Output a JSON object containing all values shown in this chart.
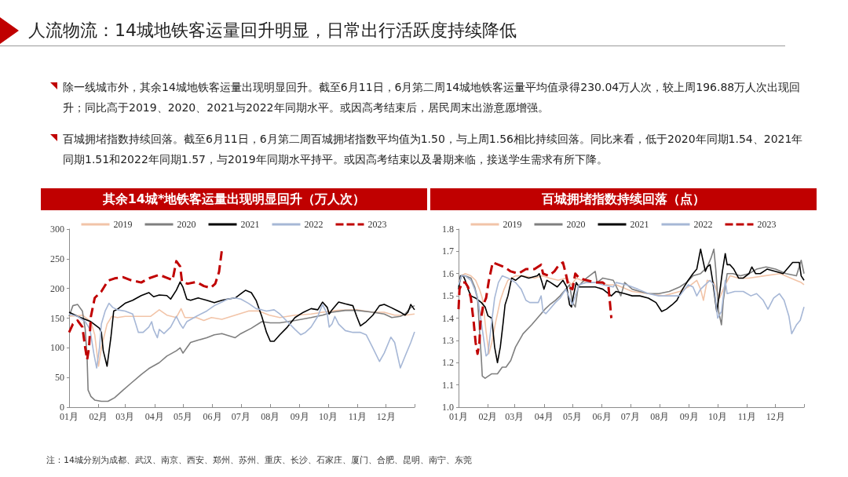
{
  "chart_data": [
    {
      "type": "other",
      "title": "人流物流：14城地铁客运量回升明显，日常出行活跃度持续降低",
      "annotations": [
        "除一线城市外，其余14城地铁客运量出现明显回升。截至6月11日，6月第二周14城地铁客运量平均值录得230.04万人次，较上周196.88万人次出现回升；同比高于2019、2020、2021与2022年同期水平。或因高考结束后，居民周末出游意愿增强。",
        "百城拥堵指数持续回落。截至6月11日，6月第二周百城拥堵指数平均值为1.50，与上周1.56相比持续回落。同比来看，低于2020年同期1.54、2021年同期1.51和2022年同期1.57，与2019年同期水平持平。或因高考结束以及暑期来临，接送学生需求有所下降。"
      ]
    },
    {
      "type": "line",
      "title": "其余14城*地铁客运量出现明显回升（万人次）",
      "xlim": [
        "--01-01",
        "--12-31"
      ],
      "xticks": [
        {
          "value": "--01-01",
          "label": "01月"
        },
        {
          "value": "--02-01",
          "label": "02月"
        },
        {
          "value": "--03-01",
          "label": "03月"
        },
        {
          "value": "--04-01",
          "label": "04月"
        },
        {
          "value": "--05-01",
          "label": "05月"
        },
        {
          "value": "--06-01",
          "label": "06月"
        },
        {
          "value": "--07-01",
          "label": "07月"
        },
        {
          "value": "--08-01",
          "label": "08月"
        },
        {
          "value": "--09-01",
          "label": "09月"
        },
        {
          "value": "--10-01",
          "label": "10月"
        },
        {
          "value": "--11-01",
          "label": "11月"
        },
        {
          "value": "--12-01",
          "label": "12月"
        },
        {
          "value": "--12-31",
          "label": null
        }
      ],
      "ylim": [
        0,
        300
      ],
      "yticks": [
        0,
        50,
        100,
        150,
        200,
        250,
        300
      ],
      "legend": "top",
      "marker": "none",
      "annotations": [
        "注：14城分别为成都、武汉、南京、西安、郑州、苏州、重庆、长沙、石家庄、厦门、合肥、昆明、南宁、东莞"
      ],
      "series": [
        {
          "name": "2019",
          "color": "#f2c4a8",
          "x": [
            "--01-01",
            "--01-15",
            "--01-24",
            "--01-28",
            "--02-01",
            "--02-04",
            "--02-10",
            "--02-15",
            "--02-21",
            "--03-01",
            "--03-20",
            "--03-28",
            "--04-06",
            "--04-14",
            "--04-24",
            "--04-29",
            "--05-03",
            "--05-15",
            "--05-23",
            "--05-31",
            "--06-11",
            "--06-25",
            "--07-09",
            "--07-20",
            "--07-31",
            "--08-11",
            "--08-27",
            "--09-13",
            "--09-25",
            "--10-11",
            "--10-31",
            "--11-17",
            "--11-29",
            "--12-10",
            "--12-21",
            "--12-31"
          ],
          "values": [
            153,
            155,
            144,
            122,
            69,
            100,
            140,
            153,
            151,
            153,
            153,
            153,
            164,
            155,
            151,
            166,
            151,
            151,
            146,
            151,
            148,
            155,
            162,
            162,
            155,
            151,
            155,
            157,
            160,
            163,
            164,
            160,
            160,
            155,
            155,
            157
          ]
        },
        {
          "name": "2020",
          "color": "#7f7f7f",
          "x": [
            "--01-01",
            "--01-05",
            "--01-10",
            "--01-15",
            "--01-18",
            "--01-20",
            "--01-21",
            "--01-24",
            "--01-28",
            "--02-04",
            "--02-11",
            "--02-18",
            "--02-27",
            "--03-07",
            "--03-18",
            "--03-26",
            "--04-06",
            "--04-14",
            "--04-24",
            "--04-28",
            "--05-01",
            "--05-05",
            "--05-09",
            "--05-17",
            "--05-26",
            "--06-03",
            "--06-11",
            "--06-15",
            "--06-25",
            "--07-01",
            "--07-12",
            "--07-23",
            "--08-01",
            "--08-11",
            "--08-27",
            "--09-13",
            "--09-25",
            "--10-05",
            "--10-19",
            "--10-31",
            "--11-17",
            "--11-29",
            "--12-07",
            "--12-16",
            "--12-21",
            "--12-27",
            "--12-31"
          ],
          "values": [
            153,
            171,
            173,
            162,
            131,
            82,
            29,
            18,
            12,
            10,
            10,
            16,
            29,
            40,
            55,
            65,
            75,
            86,
            95,
            100,
            91,
            100,
            109,
            113,
            117,
            122,
            124,
            122,
            117,
            124,
            133,
            144,
            142,
            142,
            146,
            151,
            155,
            160,
            163,
            163,
            160,
            157,
            151,
            153,
            157,
            168,
            171
          ]
        },
        {
          "name": "2021",
          "color": "#000000",
          "x": [
            "--01-01",
            "--01-10",
            "--01-24",
            "--02-02",
            "--02-04",
            "--02-06",
            "--02-10",
            "--02-14",
            "--02-17",
            "--02-21",
            "--03-01",
            "--03-09",
            "--03-18",
            "--03-26",
            "--03-31",
            "--04-06",
            "--04-14",
            "--04-18",
            "--04-24",
            "--04-28",
            "--05-01",
            "--05-05",
            "--05-09",
            "--05-17",
            "--05-26",
            "--06-03",
            "--06-11",
            "--06-17",
            "--06-25",
            "--07-01",
            "--07-06",
            "--07-12",
            "--07-17",
            "--07-23",
            "--07-28",
            "--08-01",
            "--08-05",
            "--08-11",
            "--08-19",
            "--08-27",
            "--09-05",
            "--09-13",
            "--09-20",
            "--09-25",
            "--09-30",
            "--10-02",
            "--10-05",
            "--10-12",
            "--10-19",
            "--10-27",
            "--10-31",
            "--11-04",
            "--11-10",
            "--11-17",
            "--11-24",
            "--11-29",
            "--12-06",
            "--12-16",
            "--12-21",
            "--12-24",
            "--12-27",
            "--12-31"
          ],
          "values": [
            160,
            153,
            144,
            133,
            126,
            95,
            69,
            117,
            162,
            165,
            175,
            180,
            188,
            193,
            186,
            189,
            188,
            182,
            197,
            211,
            202,
            182,
            180,
            184,
            180,
            176,
            180,
            182,
            184,
            191,
            197,
            193,
            180,
            153,
            126,
            111,
            111,
            122,
            135,
            151,
            160,
            166,
            164,
            177,
            168,
            157,
            164,
            177,
            174,
            171,
            153,
            137,
            144,
            155,
            171,
            173,
            168,
            160,
            155,
            160,
            173,
            164
          ]
        },
        {
          "name": "2022",
          "color": "#a6b7d6",
          "x": [
            "--01-01",
            "--01-10",
            "--01-18",
            "--01-23",
            "--01-27",
            "--01-30",
            "--02-02",
            "--02-04",
            "--02-08",
            "--02-12",
            "--02-16",
            "--02-21",
            "--03-01",
            "--03-09",
            "--03-15",
            "--03-20",
            "--03-26",
            "--03-29",
            "--03-31",
            "--04-04",
            "--04-06",
            "--04-11",
            "--04-18",
            "--04-24",
            "--04-28",
            "--05-01",
            "--05-05",
            "--05-15",
            "--05-26",
            "--06-03",
            "--06-11",
            "--06-17",
            "--06-25",
            "--07-01",
            "--07-09",
            "--07-17",
            "--07-23",
            "--07-28",
            "--08-05",
            "--08-11",
            "--08-19",
            "--08-27",
            "--09-02",
            "--09-07",
            "--09-13",
            "--09-20",
            "--09-25",
            "--09-30",
            "--10-02",
            "--10-05",
            "--10-08",
            "--10-12",
            "--10-19",
            "--10-27",
            "--11-04",
            "--11-10",
            "--11-17",
            "--11-24",
            "--11-29",
            "--12-06",
            "--12-10",
            "--12-16",
            "--12-21",
            "--12-27",
            "--12-31"
          ],
          "values": [
            157,
            153,
            144,
            131,
            91,
            66,
            100,
            140,
            162,
            175,
            168,
            164,
            162,
            157,
            126,
            126,
            135,
            144,
            131,
            117,
            131,
            124,
            135,
            153,
            140,
            133,
            144,
            153,
            162,
            171,
            177,
            182,
            184,
            182,
            175,
            166,
            164,
            162,
            164,
            157,
            144,
            131,
            122,
            126,
            135,
            153,
            173,
            157,
            135,
            140,
            153,
            140,
            129,
            126,
            126,
            122,
            100,
            77,
            91,
            118,
            109,
            66,
            86,
            109,
            127
          ]
        },
        {
          "name": "2023",
          "color": "#c00000",
          "line_style": "dashed",
          "x": [
            "--01-01",
            "--01-05",
            "--01-10",
            "--01-15",
            "--01-18",
            "--01-20",
            "--01-22",
            "--01-24",
            "--01-28",
            "--02-04",
            "--02-11",
            "--02-18",
            "--02-27",
            "--03-07",
            "--03-18",
            "--03-26",
            "--04-06",
            "--04-14",
            "--04-20",
            "--04-24",
            "--04-28",
            "--04-30",
            "--05-06",
            "--05-15",
            "--05-23",
            "--05-30",
            "--06-04",
            "--06-08",
            "--06-11"
          ],
          "values": [
            126,
            140,
            146,
            135,
            100,
            80,
            100,
            153,
            184,
            195,
            213,
            217,
            219,
            214,
            210,
            217,
            223,
            218,
            214,
            246,
            237,
            211,
            208,
            211,
            204,
            201,
            208,
            228,
            265
          ]
        }
      ]
    },
    {
      "type": "line",
      "title": "百城拥堵指数持续回落（点）",
      "xlim": [
        "--01-01",
        "--12-31"
      ],
      "xticks": [
        {
          "value": "--01-01",
          "label": "01月"
        },
        {
          "value": "--02-01",
          "label": "02月"
        },
        {
          "value": "--03-01",
          "label": "03月"
        },
        {
          "value": "--04-01",
          "label": "04月"
        },
        {
          "value": "--05-01",
          "label": "05月"
        },
        {
          "value": "--06-01",
          "label": "06月"
        },
        {
          "value": "--07-01",
          "label": "07月"
        },
        {
          "value": "--08-01",
          "label": "08月"
        },
        {
          "value": "--09-01",
          "label": "09月"
        },
        {
          "value": "--10-01",
          "label": "10月"
        },
        {
          "value": "--11-01",
          "label": "11月"
        },
        {
          "value": "--12-01",
          "label": "12月"
        },
        {
          "value": "--12-31",
          "label": null
        }
      ],
      "ylim": [
        1,
        1.8
      ],
      "yticks": [
        {
          "value": 1,
          "label": "1.0"
        },
        1.1,
        1.2,
        1.3,
        1.4,
        1.5,
        1.6,
        1.7,
        1.8
      ],
      "legend": "top",
      "marker": "none",
      "series": [
        {
          "name": "2019",
          "color": "#f2c4a8",
          "x": [
            "--01-01",
            "--01-04",
            "--01-08",
            "--01-14",
            "--01-19",
            "--01-23",
            "--01-26",
            "--01-28",
            "--01-30",
            "--02-02",
            "--02-05",
            "--02-09",
            "--02-14",
            "--02-18",
            "--02-22",
            "--03-02",
            "--03-10",
            "--03-22",
            "--03-30",
            "--04-07",
            "--04-16",
            "--04-24",
            "--04-30",
            "--05-05",
            "--05-16",
            "--05-27",
            "--06-08",
            "--06-16",
            "--07-03",
            "--07-20",
            "--08-05",
            "--08-22",
            "--08-31",
            "--09-09",
            "--09-13",
            "--09-16",
            "--09-20",
            "--09-27",
            "--10-03",
            "--10-09",
            "--10-14",
            "--10-23",
            "--11-03",
            "--11-19",
            "--12-06",
            "--12-17",
            "--12-28",
            "--12-31"
          ],
          "values": [
            1.56,
            1.59,
            1.6,
            1.59,
            1.57,
            1.53,
            1.49,
            1.42,
            1.34,
            1.24,
            1.29,
            1.38,
            1.48,
            1.53,
            1.57,
            1.59,
            1.59,
            1.58,
            1.59,
            1.58,
            1.57,
            1.58,
            1.55,
            1.58,
            1.56,
            1.56,
            1.55,
            1.55,
            1.52,
            1.51,
            1.5,
            1.52,
            1.54,
            1.57,
            1.53,
            1.48,
            1.57,
            1.56,
            1.49,
            1.55,
            1.59,
            1.58,
            1.58,
            1.59,
            1.6,
            1.58,
            1.56,
            1.55
          ]
        },
        {
          "name": "2020",
          "color": "#7f7f7f",
          "x": [
            "--01-01",
            "--01-04",
            "--01-08",
            "--01-14",
            "--01-18",
            "--01-21",
            "--01-23",
            "--01-25",
            "--01-26",
            "--01-29",
            "--02-05",
            "--02-11",
            "--02-16",
            "--02-20",
            "--02-25",
            "--03-02",
            "--03-10",
            "--03-19",
            "--03-27",
            "--04-02",
            "--04-07",
            "--04-13",
            "--04-18",
            "--04-24",
            "--04-28",
            "--05-01",
            "--05-04",
            "--05-07",
            "--05-11",
            "--05-16",
            "--05-25",
            "--05-27",
            "--06-02",
            "--06-13",
            "--06-21",
            "--06-25",
            "--07-03",
            "--07-11",
            "--07-20",
            "--07-31",
            "--08-11",
            "--08-22",
            "--08-29",
            "--09-05",
            "--09-13",
            "--09-20",
            "--09-24",
            "--09-27",
            "--09-29",
            "--10-02",
            "--10-05",
            "--10-07",
            "--10-11",
            "--10-17",
            "--10-25",
            "--11-03",
            "--11-11",
            "--11-21",
            "--12-01",
            "--12-12",
            "--12-23",
            "--12-28",
            "--12-31"
          ],
          "values": [
            1.54,
            1.59,
            1.59,
            1.58,
            1.54,
            1.49,
            1.35,
            1.22,
            1.14,
            1.13,
            1.15,
            1.15,
            1.18,
            1.18,
            1.21,
            1.27,
            1.33,
            1.37,
            1.41,
            1.44,
            1.46,
            1.48,
            1.5,
            1.53,
            1.55,
            1.47,
            1.45,
            1.54,
            1.56,
            1.58,
            1.61,
            1.56,
            1.58,
            1.57,
            1.5,
            1.56,
            1.53,
            1.52,
            1.51,
            1.51,
            1.52,
            1.54,
            1.56,
            1.59,
            1.6,
            1.63,
            1.67,
            1.71,
            1.62,
            1.43,
            1.37,
            1.48,
            1.6,
            1.6,
            1.59,
            1.6,
            1.62,
            1.63,
            1.62,
            1.6,
            1.59,
            1.66,
            1.6
          ]
        },
        {
          "name": "2021",
          "color": "#000000",
          "x": [
            "--01-01",
            "--01-03",
            "--01-06",
            "--01-08",
            "--01-11",
            "--01-14",
            "--01-19",
            "--01-25",
            "--01-29",
            "--02-01",
            "--02-05",
            "--02-08",
            "--02-11",
            "--02-14",
            "--02-17",
            "--02-19",
            "--02-22",
            "--02-26",
            "--03-02",
            "--03-08",
            "--03-16",
            "--03-25",
            "--03-27",
            "--03-30",
            "--04-01",
            "--04-04",
            "--04-08",
            "--04-15",
            "--04-21",
            "--04-25",
            "--04-28",
            "--04-30",
            "--05-02",
            "--05-05",
            "--05-08",
            "--05-16",
            "--05-25",
            "--06-02",
            "--06-11",
            "--06-16",
            "--06-25",
            "--07-03",
            "--07-11",
            "--07-20",
            "--07-28",
            "--08-03",
            "--08-08",
            "--08-14",
            "--08-19",
            "--08-25",
            "--08-31",
            "--09-05",
            "--09-09",
            "--09-13",
            "--09-15",
            "--09-18",
            "--09-20",
            "--09-23",
            "--09-26",
            "--09-30",
            "--10-03",
            "--10-06",
            "--10-09",
            "--10-11",
            "--10-14",
            "--10-18",
            "--10-23",
            "--10-28",
            "--11-03",
            "--11-06",
            "--11-10",
            "--11-15",
            "--11-22",
            "--12-01",
            "--12-09",
            "--12-19",
            "--12-26",
            "--12-28",
            "--12-31"
          ],
          "values": [
            1.53,
            1.59,
            1.59,
            1.57,
            1.53,
            1.5,
            1.49,
            1.47,
            1.45,
            1.41,
            1.4,
            1.27,
            1.2,
            1.27,
            1.38,
            1.46,
            1.5,
            1.58,
            1.57,
            1.59,
            1.58,
            1.59,
            1.6,
            1.56,
            1.53,
            1.57,
            1.56,
            1.54,
            1.57,
            1.54,
            1.46,
            1.45,
            1.5,
            1.56,
            1.54,
            1.54,
            1.54,
            1.53,
            1.5,
            1.52,
            1.51,
            1.5,
            1.5,
            1.49,
            1.47,
            1.43,
            1.44,
            1.46,
            1.48,
            1.53,
            1.57,
            1.6,
            1.62,
            1.71,
            1.67,
            1.61,
            1.63,
            1.64,
            1.56,
            1.43,
            1.51,
            1.61,
            1.69,
            1.64,
            1.64,
            1.62,
            1.58,
            1.58,
            1.6,
            1.63,
            1.6,
            1.6,
            1.62,
            1.61,
            1.6,
            1.65,
            1.65,
            1.59,
            1.57
          ]
        },
        {
          "name": "2022",
          "color": "#a6b7d6",
          "x": [
            "--01-01",
            "--01-04",
            "--01-08",
            "--01-14",
            "--01-18",
            "--01-22",
            "--01-25",
            "--01-28",
            "--01-30",
            "--02-01",
            "--02-04",
            "--02-08",
            "--02-12",
            "--02-16",
            "--02-22",
            "--03-02",
            "--03-08",
            "--03-13",
            "--03-17",
            "--03-22",
            "--03-26",
            "--03-29",
            "--03-31",
            "--04-03",
            "--04-07",
            "--04-13",
            "--04-18",
            "--04-24",
            "--04-28",
            "--05-01",
            "--05-04",
            "--05-08",
            "--05-16",
            "--05-25",
            "--06-02",
            "--06-13",
            "--06-16",
            "--06-27",
            "--07-09",
            "--07-20",
            "--07-31",
            "--08-11",
            "--08-22",
            "--08-31",
            "--09-05",
            "--09-09",
            "--09-13",
            "--09-18",
            "--09-23",
            "--09-27",
            "--10-01",
            "--10-05",
            "--10-09",
            "--10-11",
            "--10-19",
            "--10-28",
            "--11-05",
            "--11-11",
            "--11-18",
            "--11-23",
            "--11-29",
            "--12-05",
            "--12-10",
            "--12-15",
            "--12-18",
            "--12-23",
            "--12-27",
            "--12-31"
          ],
          "values": [
            1.55,
            1.59,
            1.59,
            1.57,
            1.53,
            1.47,
            1.38,
            1.29,
            1.23,
            1.24,
            1.35,
            1.49,
            1.56,
            1.59,
            1.58,
            1.56,
            1.53,
            1.48,
            1.47,
            1.47,
            1.47,
            1.5,
            1.43,
            1.42,
            1.44,
            1.47,
            1.49,
            1.53,
            1.49,
            1.46,
            1.5,
            1.55,
            1.56,
            1.56,
            1.55,
            1.54,
            1.56,
            1.55,
            1.53,
            1.51,
            1.5,
            1.5,
            1.5,
            1.55,
            1.54,
            1.5,
            1.53,
            1.55,
            1.57,
            1.55,
            1.4,
            1.43,
            1.57,
            1.51,
            1.52,
            1.52,
            1.5,
            1.51,
            1.48,
            1.44,
            1.49,
            1.51,
            1.48,
            1.41,
            1.33,
            1.37,
            1.39,
            1.45
          ]
        },
        {
          "name": "2023",
          "color": "#c00000",
          "line_style": "dashed",
          "x": [
            "--01-01",
            "--01-02",
            "--01-05",
            "--01-08",
            "--01-11",
            "--01-14",
            "--01-17",
            "--01-19",
            "--01-21",
            "--01-23",
            "--01-24",
            "--01-27",
            "--01-30",
            "--02-02",
            "--02-06",
            "--02-12",
            "--02-18",
            "--02-25",
            "--03-05",
            "--03-13",
            "--03-22",
            "--03-29",
            "--03-31",
            "--04-06",
            "--04-12",
            "--04-17",
            "--04-21",
            "--04-24",
            "--04-27",
            "--05-01",
            "--05-04",
            "--05-08",
            "--05-16",
            "--05-25",
            "--06-02",
            "--06-08",
            "--06-11"
          ],
          "values": [
            1.44,
            1.53,
            1.56,
            1.56,
            1.54,
            1.49,
            1.38,
            1.29,
            1.24,
            1.29,
            1.38,
            1.46,
            1.49,
            1.57,
            1.65,
            1.64,
            1.63,
            1.61,
            1.6,
            1.62,
            1.62,
            1.64,
            1.6,
            1.59,
            1.61,
            1.64,
            1.65,
            1.6,
            1.54,
            1.53,
            1.6,
            1.58,
            1.57,
            1.56,
            1.56,
            1.54,
            1.4
          ]
        }
      ]
    }
  ]
}
